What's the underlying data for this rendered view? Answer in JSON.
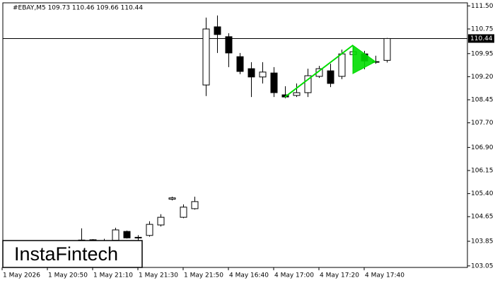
{
  "chart_data": {
    "type": "candlestick",
    "title": "#EBAY,M5  109.73 110.46 109.66 110.44",
    "categories": [
      "1 May 2026",
      null,
      null,
      null,
      "1 May 20:50",
      null,
      null,
      null,
      "1 May 21:10",
      null,
      null,
      null,
      "1 May 21:30",
      null,
      null,
      null,
      "1 May 21:50",
      null,
      null,
      null,
      "4 May 16:40",
      null,
      null,
      null,
      "4 May 17:00",
      null,
      null,
      null,
      "4 May 17:20",
      null,
      null,
      null,
      "4 May 17:40",
      null,
      null,
      null,
      null,
      null,
      null,
      null,
      null,
      null
    ],
    "open": [
      null,
      null,
      null,
      null,
      null,
      null,
      null,
      103.88,
      103.9,
      103.86,
      103.88,
      104.17,
      103.96,
      104.04,
      104.38,
      105.22,
      104.63,
      104.91,
      108.93,
      110.82,
      110.5,
      109.85,
      109.46,
      109.19,
      109.32,
      108.61,
      108.59,
      108.68,
      109.21,
      109.39,
      109.21,
      109.92,
      109.94,
      109.69,
      109.73,
      null,
      null,
      null,
      null,
      null,
      null,
      null
    ],
    "high": [
      null,
      null,
      null,
      null,
      null,
      null,
      null,
      104.27,
      103.92,
      103.93,
      104.29,
      104.2,
      104.05,
      104.5,
      104.73,
      105.3,
      105.05,
      105.3,
      111.12,
      111.19,
      110.61,
      109.97,
      109.67,
      109.67,
      109.51,
      108.89,
      108.98,
      109.46,
      109.55,
      109.62,
      110.08,
      110.17,
      110.04,
      109.88,
      110.46,
      null,
      null,
      null,
      null,
      null,
      null,
      null
    ],
    "low": [
      null,
      null,
      null,
      null,
      null,
      null,
      null,
      103.76,
      103.83,
      103.8,
      103.85,
      103.94,
      103.88,
      104.0,
      104.33,
      105.18,
      104.6,
      104.88,
      108.57,
      109.97,
      109.51,
      109.28,
      108.54,
      108.98,
      108.54,
      108.5,
      108.54,
      108.54,
      109.16,
      108.86,
      109.12,
      109.51,
      109.44,
      109.62,
      109.66,
      null,
      null,
      null,
      null,
      null,
      null,
      null
    ],
    "close": [
      null,
      null,
      null,
      null,
      null,
      null,
      null,
      103.89,
      103.86,
      103.87,
      104.22,
      103.96,
      103.98,
      104.4,
      104.63,
      105.26,
      104.96,
      105.14,
      110.75,
      110.57,
      109.97,
      109.37,
      109.19,
      109.35,
      108.68,
      108.54,
      108.68,
      109.23,
      109.46,
      108.98,
      109.94,
      110.01,
      109.71,
      109.67,
      110.44,
      null,
      null,
      null,
      null,
      null,
      null,
      null
    ],
    "up_color": "#ffffff",
    "down_color": "#000000",
    "ylim": [
      103.0,
      111.6
    ],
    "yticks": [
      {
        "value": 111.5,
        "label": "111.50"
      },
      110.75,
      109.95,
      {
        "value": 109.2,
        "label": "109.20"
      },
      108.45,
      {
        "value": 107.7,
        "label": "107.70"
      },
      {
        "value": 106.9,
        "label": "106.90"
      },
      106.15,
      {
        "value": 105.4,
        "label": "105.40"
      },
      104.65,
      103.85,
      103.05
    ],
    "current_price": 110.44,
    "pattern": {
      "color": "#00dd00",
      "pole": {
        "x": [
          25,
          31
        ],
        "y": [
          108.54,
          110.22
        ]
      },
      "flag": {
        "x": [
          31,
          31,
          33
        ],
        "y": [
          110.22,
          109.3,
          109.69
        ]
      }
    }
  },
  "logo": "InstaFintech"
}
